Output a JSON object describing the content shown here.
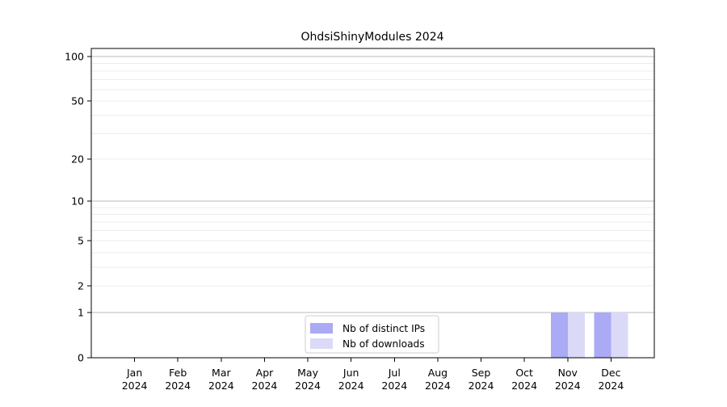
{
  "chart_data": {
    "type": "bar",
    "title": "OhdsiShinyModules 2024",
    "xlabel": "",
    "ylabel": "",
    "categories": [
      "Jan 2024",
      "Feb 2024",
      "Mar 2024",
      "Apr 2024",
      "May 2024",
      "Jun 2024",
      "Jul 2024",
      "Aug 2024",
      "Sep 2024",
      "Oct 2024",
      "Nov 2024",
      "Dec 2024"
    ],
    "series": [
      {
        "name": "Nb of distinct IPs",
        "color": "#aaaaf5",
        "values": [
          0,
          0,
          0,
          0,
          0,
          0,
          0,
          0,
          0,
          0,
          1,
          1
        ]
      },
      {
        "name": "Nb of downloads",
        "color": "#dadaf8",
        "values": [
          0,
          0,
          0,
          0,
          0,
          0,
          0,
          0,
          0,
          0,
          1,
          1
        ]
      }
    ],
    "yscale": "log1p",
    "ylim": [
      0,
      100
    ],
    "y_ticks": [
      100,
      50,
      20,
      10,
      5,
      2,
      1,
      0
    ],
    "y_major_gridlines": [
      1,
      10,
      100
    ],
    "y_minor_gridlines": [
      2,
      3,
      4,
      5,
      6,
      7,
      8,
      9,
      20,
      30,
      40,
      50,
      60,
      70,
      80,
      90
    ],
    "grid": "horizontal-only",
    "legend": {
      "position": "bottom-center",
      "border_color": "#cccccc",
      "background": "#ffffff"
    },
    "colors": {
      "background": "#ffffff",
      "axis": "#000000",
      "text": "#000000",
      "major_gridline": "#bbbbbb",
      "minor_gridline": "#ececec"
    }
  }
}
